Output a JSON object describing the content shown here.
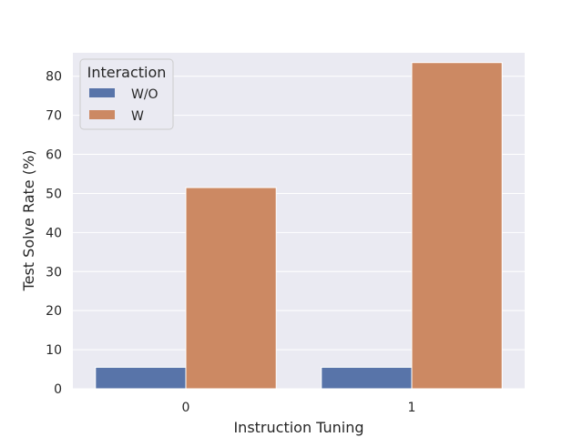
{
  "chart_data": {
    "type": "bar",
    "title": "",
    "xlabel": "Instruction Tuning",
    "ylabel": "Test Solve Rate (%)",
    "categories": [
      "0",
      "1"
    ],
    "series": [
      {
        "name": "W/O",
        "values": [
          5.5,
          5.5
        ],
        "color": "#5874a9"
      },
      {
        "name": "W",
        "values": [
          51.5,
          83.5
        ],
        "color": "#cc8963"
      }
    ],
    "ylim": [
      0,
      86
    ],
    "yticks": [
      0,
      10,
      20,
      30,
      40,
      50,
      60,
      70,
      80
    ],
    "grid": true,
    "background_color": "#eaeaf2",
    "legend": {
      "title": "Interaction",
      "placement": "top-left"
    }
  }
}
